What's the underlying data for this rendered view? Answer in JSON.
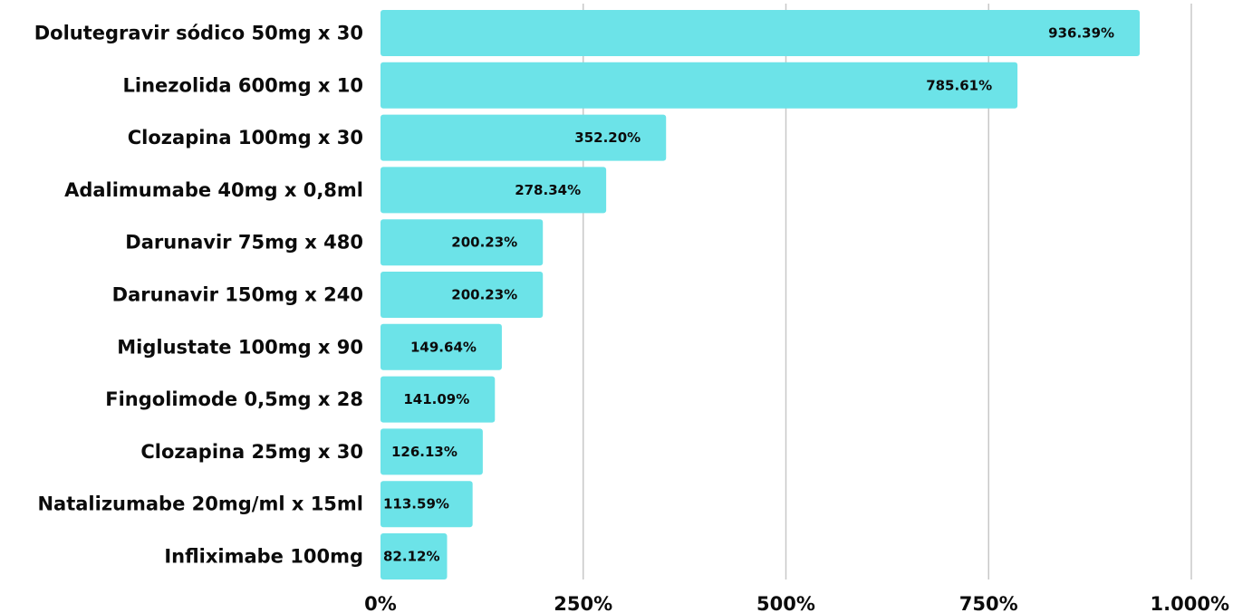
{
  "chart_data": {
    "type": "bar",
    "orientation": "horizontal",
    "categories": [
      "Dolutegravir sódico 50mg x 30",
      "Linezolida 600mg x 10",
      "Clozapina 100mg x 30",
      "Adalimumabe 40mg x 0,8ml",
      "Darunavir 75mg x 480",
      "Darunavir 150mg x 240",
      "Miglustate 100mg x 90",
      "Fingolimode 0,5mg x 28",
      "Clozapina 25mg x 30",
      "Natalizumabe 20mg/ml x 15ml",
      "Infliximabe 100mg"
    ],
    "values": [
      936.39,
      785.61,
      352.2,
      278.34,
      200.23,
      200.23,
      149.64,
      141.09,
      126.13,
      113.59,
      82.12
    ],
    "data_labels": [
      "936.39%",
      "785.61%",
      "352.20%",
      "278.34%",
      "200.23%",
      "200.23%",
      "149.64%",
      "141.09%",
      "126.13%",
      "113.59%",
      "82.12%"
    ],
    "x_ticks": [
      0,
      250,
      500,
      750,
      1000
    ],
    "x_tick_labels": [
      "0%",
      "250%",
      "500%",
      "750%",
      "1.000%"
    ],
    "xlim": [
      0,
      1000
    ],
    "grid": true,
    "title": "",
    "xlabel": "",
    "ylabel": "",
    "bar_color": "#6ce3e8",
    "text_color": "#0b0b0b",
    "grid_color": "#c8c8c8"
  }
}
